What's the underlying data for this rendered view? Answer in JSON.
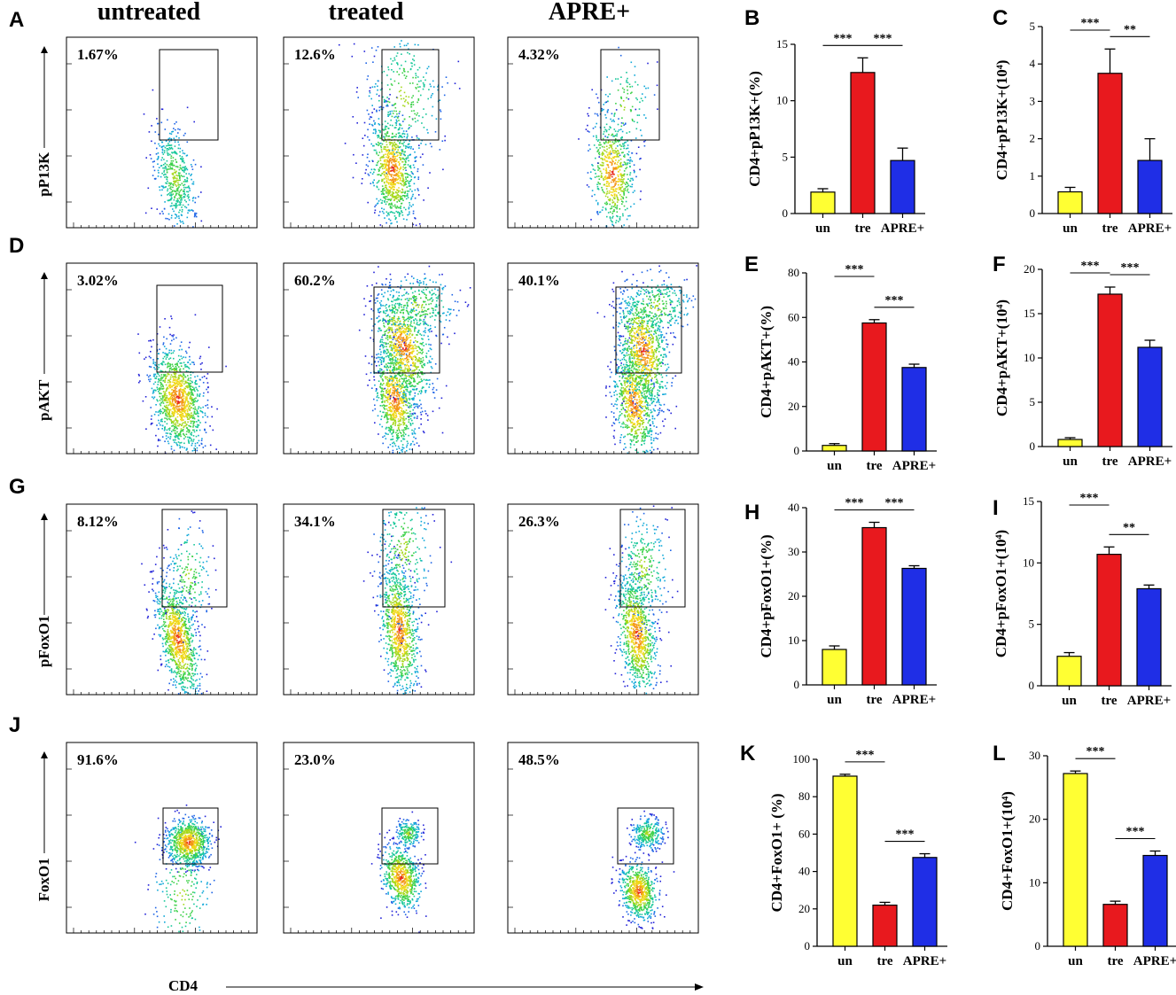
{
  "chart_data": {
    "type": "bar",
    "columns": [
      "untreated",
      "treated",
      "APRE+"
    ],
    "x_axis_label": "CD4",
    "flow_rows": [
      {
        "panel": "A",
        "marker": "pP13K",
        "percentages": [
          "1.67%",
          "12.6%",
          "4.32%"
        ]
      },
      {
        "panel": "D",
        "marker": "pAKT",
        "percentages": [
          "3.02%",
          "60.2%",
          "40.1%"
        ]
      },
      {
        "panel": "G",
        "marker": "pFoxO1",
        "percentages": [
          "8.12%",
          "34.1%",
          "26.3%"
        ]
      },
      {
        "panel": "J",
        "marker": "FoxO1",
        "percentages": [
          "91.6%",
          "23.0%",
          "48.5%"
        ]
      }
    ],
    "bar_charts": [
      {
        "panel": "B",
        "ylabel": "CD4+pP13K+(%)",
        "categories": [
          "un",
          "tre",
          "APRE+"
        ],
        "values": [
          1.9,
          12.5,
          4.7
        ],
        "errors": [
          0.3,
          1.3,
          1.1
        ],
        "ylim": [
          0,
          15
        ],
        "yticks": [
          0,
          5,
          10,
          15
        ],
        "significance": [
          {
            "from": 0,
            "to": 1,
            "label": "***"
          },
          {
            "from": 1,
            "to": 2,
            "label": "***"
          }
        ]
      },
      {
        "panel": "C",
        "ylabel": "CD4+pP13K+(10⁴)",
        "categories": [
          "un",
          "tre",
          "APRE+"
        ],
        "values": [
          0.58,
          3.75,
          1.42
        ],
        "errors": [
          0.12,
          0.65,
          0.58
        ],
        "ylim": [
          0,
          5
        ],
        "yticks": [
          0,
          1,
          2,
          3,
          4,
          5
        ],
        "significance": [
          {
            "from": 0,
            "to": 1,
            "label": "***"
          },
          {
            "from": 1,
            "to": 2,
            "label": "**"
          }
        ]
      },
      {
        "panel": "E",
        "ylabel": "CD4+pAKT+(%)",
        "categories": [
          "un",
          "tre",
          "APRE+"
        ],
        "values": [
          2.5,
          57.5,
          37.5
        ],
        "errors": [
          0.8,
          1.5,
          1.5
        ],
        "ylim": [
          0,
          80
        ],
        "yticks": [
          0,
          20,
          40,
          60,
          80
        ],
        "significance": [
          {
            "from": 0,
            "to": 1,
            "label": "***"
          },
          {
            "from": 1,
            "to": 2,
            "label": "***"
          }
        ]
      },
      {
        "panel": "F",
        "ylabel": "CD4+pAKT+(10⁴)",
        "categories": [
          "un",
          "tre",
          "APRE+"
        ],
        "values": [
          0.8,
          17.2,
          11.2
        ],
        "errors": [
          0.2,
          0.8,
          0.8
        ],
        "ylim": [
          0,
          20
        ],
        "yticks": [
          0,
          5,
          10,
          15,
          20
        ],
        "significance": [
          {
            "from": 0,
            "to": 1,
            "label": "***"
          },
          {
            "from": 1,
            "to": 2,
            "label": "***"
          }
        ]
      },
      {
        "panel": "H",
        "ylabel": "CD4+pFoxO1+(%)",
        "categories": [
          "un",
          "tre",
          "APRE+"
        ],
        "values": [
          8.0,
          35.5,
          26.3
        ],
        "errors": [
          0.8,
          1.2,
          0.6
        ],
        "ylim": [
          0,
          40
        ],
        "yticks": [
          0,
          10,
          20,
          30,
          40
        ],
        "significance": [
          {
            "from": 0,
            "to": 1,
            "label": "***"
          },
          {
            "from": 1,
            "to": 2,
            "label": "***"
          }
        ]
      },
      {
        "panel": "I",
        "ylabel": "CD4+pFoxO1+(10⁴)",
        "categories": [
          "un",
          "tre",
          "APRE+"
        ],
        "values": [
          2.4,
          10.7,
          7.9
        ],
        "errors": [
          0.3,
          0.6,
          0.3
        ],
        "ylim": [
          0,
          15
        ],
        "yticks": [
          0,
          5,
          10,
          15
        ],
        "significance": [
          {
            "from": 0,
            "to": 1,
            "label": "***"
          },
          {
            "from": 1,
            "to": 2,
            "label": "**"
          }
        ]
      },
      {
        "panel": "K",
        "ylabel": "CD4+FoxO1+ (%)",
        "categories": [
          "un",
          "tre",
          "APRE+"
        ],
        "values": [
          91.0,
          22.0,
          47.5
        ],
        "errors": [
          1.0,
          1.5,
          2.0
        ],
        "ylim": [
          0,
          100
        ],
        "yticks": [
          0,
          20,
          40,
          60,
          80,
          100
        ],
        "significance": [
          {
            "from": 0,
            "to": 1,
            "label": "***"
          },
          {
            "from": 1,
            "to": 2,
            "label": "***"
          }
        ]
      },
      {
        "panel": "L",
        "ylabel": "CD4+FoxO1+(10⁴)",
        "categories": [
          "un",
          "tre",
          "APRE+"
        ],
        "values": [
          27.2,
          6.6,
          14.3
        ],
        "errors": [
          0.4,
          0.5,
          0.7
        ],
        "ylim": [
          0,
          30
        ],
        "yticks": [
          0,
          10,
          20,
          30
        ],
        "significance": [
          {
            "from": 0,
            "to": 1,
            "label": "***"
          },
          {
            "from": 1,
            "to": 2,
            "label": "***"
          }
        ]
      }
    ],
    "bar_colors": [
      "#ffff33",
      "#e8191e",
      "#1f2ee6"
    ]
  }
}
